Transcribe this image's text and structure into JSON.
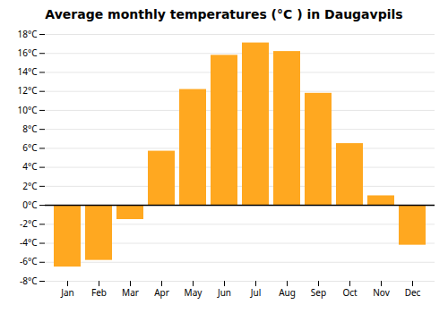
{
  "chart_data": {
    "type": "bar",
    "title": "Average monthly temperatures (°C ) in Daugavpils",
    "categories": [
      "Jan",
      "Feb",
      "Mar",
      "Apr",
      "May",
      "Jun",
      "Jul",
      "Aug",
      "Sep",
      "Oct",
      "Nov",
      "Dec"
    ],
    "values": [
      -6.5,
      -5.8,
      -1.5,
      5.7,
      12.2,
      15.8,
      17.1,
      16.2,
      11.8,
      6.5,
      1.0,
      -4.2
    ],
    "color": "#FFA820",
    "ylim": [
      -8,
      18
    ],
    "yticks": [
      {
        "value": -8,
        "label": "-8°C"
      },
      {
        "value": -6,
        "label": "-6°C"
      },
      {
        "value": -4,
        "label": "-4°C"
      },
      {
        "value": -2,
        "label": "-2°C"
      },
      {
        "value": 0,
        "label": "0°C"
      },
      {
        "value": 2,
        "label": "2°C"
      },
      {
        "value": 4,
        "label": "4°C"
      },
      {
        "value": 6,
        "label": "6°C"
      },
      {
        "value": 8,
        "label": "8°C"
      },
      {
        "value": 10,
        "label": "10°C"
      },
      {
        "value": 12,
        "label": "12°C"
      },
      {
        "value": 14,
        "label": "14°C"
      },
      {
        "value": 16,
        "label": "16°C"
      },
      {
        "value": 18,
        "label": "18°C"
      }
    ],
    "grid": true
  }
}
